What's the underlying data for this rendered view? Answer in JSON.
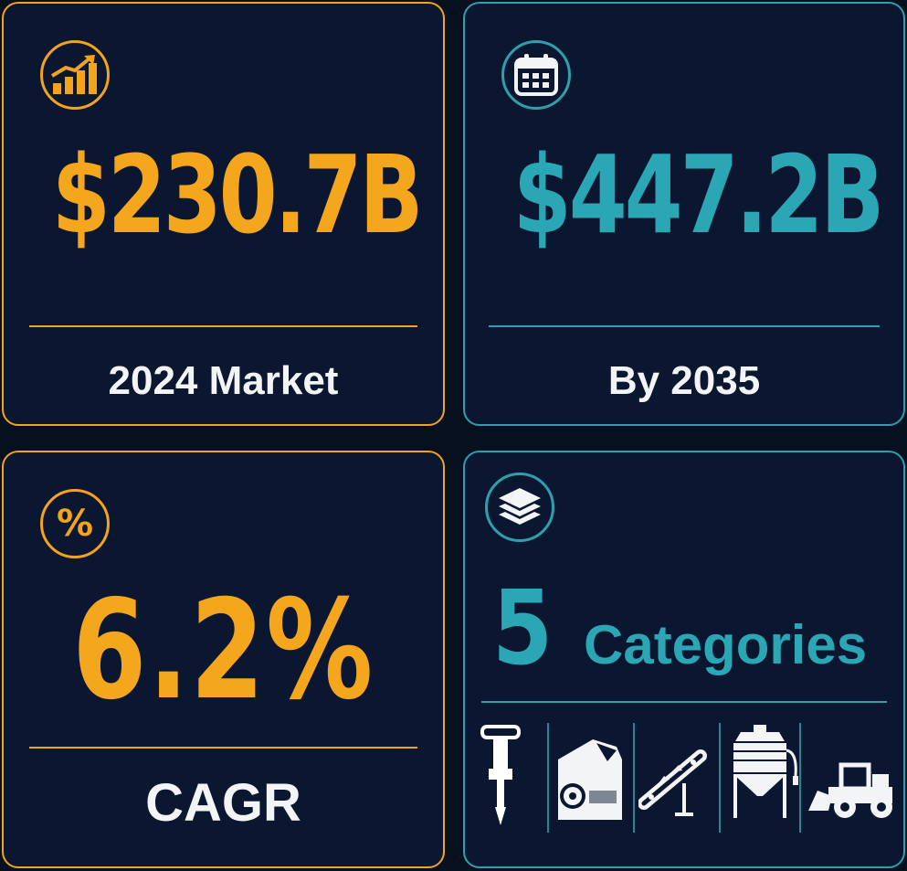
{
  "colors": {
    "accent_orange": "#f2a51a",
    "accent_teal": "#2f9fae",
    "background": "#0b1730",
    "text_light": "#f3f4f6"
  },
  "cards": {
    "market": {
      "icon": "growth-chart-icon",
      "value": "$230.7B",
      "label": "2024 Market"
    },
    "forecast": {
      "icon": "calendar-icon",
      "value": "$447.2B",
      "label": "By 2035"
    },
    "cagr": {
      "icon": "percent-icon",
      "icon_text": "%",
      "value": "6.2%",
      "label": "CAGR"
    },
    "categories": {
      "icon": "layers-icon",
      "count": "5",
      "label": "Categories",
      "machine_icons": [
        "jackhammer-icon",
        "crusher-icon",
        "conveyor-icon",
        "silo-icon",
        "wheel-loader-icon"
      ]
    }
  }
}
